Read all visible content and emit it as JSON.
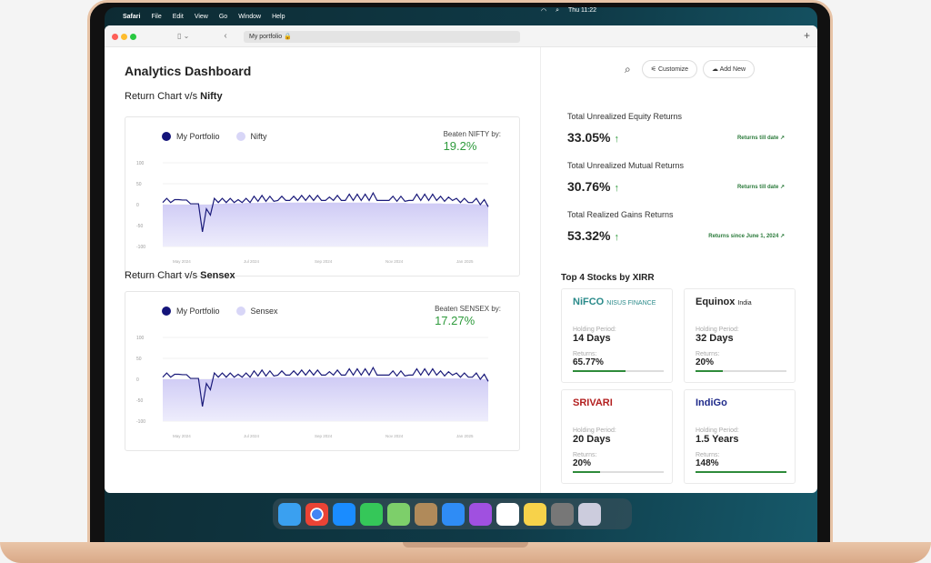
{
  "menubar": {
    "app": "Safari",
    "items": [
      "File",
      "Edit",
      "View",
      "Go",
      "Window",
      "Help"
    ],
    "clock": "Thu 11:22"
  },
  "browser": {
    "url": "My portfolio"
  },
  "page": {
    "title": "Analytics Dashboard"
  },
  "actions": {
    "customize": "Customize",
    "add_new": "Add New"
  },
  "charts": [
    {
      "title_prefix": "Return Chart v/s ",
      "title_bold": "Nifty",
      "legend": [
        "My Portfolio",
        "Nifty"
      ],
      "beaten_label": "Beaten NIFTY by:",
      "beaten_value": "19.2%"
    },
    {
      "title_prefix": "Return Chart v/s ",
      "title_bold": "Sensex",
      "legend": [
        "My Portfolio",
        "Sensex"
      ],
      "beaten_label": "Beaten SENSEX by:",
      "beaten_value": "17.27%"
    }
  ],
  "chart_data": [
    {
      "type": "line",
      "yticks": [
        "100",
        "50",
        "0",
        "-50",
        "-100"
      ],
      "ylim": [
        -100,
        100
      ],
      "xticks": [
        "May 2024",
        "Jul 2024",
        "Sep 2024",
        "Nov 2024",
        "Jan 2025"
      ],
      "series": [
        {
          "name": "My Portfolio",
          "color": "#1a1a7a",
          "values": [
            5,
            15,
            5,
            12,
            12,
            11,
            11,
            2,
            2,
            2,
            -65,
            -10,
            -25,
            15,
            5,
            15,
            5,
            15,
            5,
            12,
            5,
            15,
            5,
            20,
            8,
            22,
            8,
            20,
            8,
            10,
            20,
            10,
            10,
            20,
            10,
            22,
            10,
            22,
            10,
            22,
            10,
            10,
            18,
            10,
            22,
            10,
            10,
            25,
            10,
            25,
            10,
            25,
            10,
            28,
            10,
            10,
            10,
            10,
            20,
            8,
            20,
            8,
            10,
            10,
            25,
            10,
            25,
            10,
            25,
            10,
            20,
            8,
            18,
            10,
            15,
            5,
            15,
            5,
            5,
            15,
            0,
            12,
            -5
          ]
        },
        {
          "name": "Nifty",
          "color": "#d8d6f7",
          "values": [
            0,
            0,
            0,
            0,
            0,
            0,
            0,
            0,
            0,
            0,
            0,
            0,
            0,
            2,
            2,
            2,
            3,
            3,
            3,
            3,
            3,
            4,
            4,
            4,
            4,
            4,
            5,
            5,
            5,
            5,
            5,
            5,
            5,
            5,
            5,
            5,
            5,
            5,
            5,
            5,
            5,
            5,
            5,
            5,
            5,
            5,
            5,
            5,
            5,
            5,
            5,
            5,
            5,
            5,
            4,
            4,
            4,
            4,
            4,
            4,
            4,
            4,
            3,
            3,
            3,
            3,
            3,
            3,
            3,
            3,
            3,
            2,
            2,
            2,
            2,
            2,
            2,
            1,
            1,
            1,
            0,
            0,
            0
          ]
        }
      ]
    },
    {
      "type": "line",
      "yticks": [
        "100",
        "50",
        "0",
        "-50",
        "-100"
      ],
      "ylim": [
        -100,
        100
      ],
      "xticks": [
        "May 2024",
        "Jul 2024",
        "Sep 2024",
        "Nov 2024",
        "Jan 2025"
      ],
      "series": [
        {
          "name": "My Portfolio",
          "color": "#1a1a7a",
          "values": [
            5,
            15,
            5,
            12,
            12,
            11,
            11,
            2,
            2,
            2,
            -65,
            -10,
            -25,
            15,
            5,
            15,
            5,
            15,
            5,
            12,
            5,
            15,
            5,
            20,
            8,
            22,
            8,
            20,
            8,
            10,
            20,
            10,
            10,
            20,
            10,
            22,
            10,
            22,
            10,
            22,
            10,
            10,
            18,
            10,
            22,
            10,
            10,
            25,
            10,
            25,
            10,
            25,
            10,
            28,
            10,
            10,
            10,
            10,
            20,
            8,
            20,
            8,
            10,
            10,
            25,
            10,
            25,
            10,
            25,
            10,
            20,
            8,
            18,
            10,
            15,
            5,
            15,
            5,
            5,
            15,
            0,
            12,
            -5
          ]
        },
        {
          "name": "Sensex",
          "color": "#d8d6f7",
          "values": [
            0,
            0,
            0,
            0,
            0,
            0,
            0,
            0,
            0,
            0,
            0,
            0,
            0,
            2,
            2,
            2,
            3,
            3,
            3,
            3,
            3,
            4,
            4,
            4,
            4,
            4,
            5,
            5,
            5,
            5,
            5,
            5,
            5,
            5,
            5,
            5,
            5,
            5,
            5,
            5,
            5,
            5,
            5,
            5,
            5,
            5,
            5,
            5,
            5,
            5,
            5,
            5,
            5,
            5,
            4,
            4,
            4,
            4,
            4,
            4,
            4,
            4,
            3,
            3,
            3,
            3,
            3,
            3,
            3,
            3,
            3,
            2,
            2,
            2,
            2,
            2,
            2,
            1,
            1,
            1,
            0,
            0,
            0
          ]
        }
      ]
    }
  ],
  "stats": [
    {
      "label": "Total Unrealized Equity Returns",
      "value": "33.05%",
      "note": "Returns till date ↗"
    },
    {
      "label": "Total Unrealized Mutual Returns",
      "value": "30.76%",
      "note": "Returns till date ↗"
    },
    {
      "label": "Total Realized Gains Returns",
      "value": "53.32%",
      "note": "Returns since June 1, 2024 ↗"
    }
  ],
  "top_stocks": {
    "title": "Top 4 Stocks by XIRR",
    "holding_label": "Holding Period:",
    "returns_label": "Returns:",
    "items": [
      {
        "name": "NiFCO",
        "sub": "NISUS FINANCE",
        "holding": "14 Days",
        "returns": "65.77%",
        "progress": 0.58,
        "color": "#2a8a8a"
      },
      {
        "name": "Equinox",
        "sub": "India",
        "holding": "32 Days",
        "returns": "20%",
        "progress": 0.3,
        "color": "#222"
      },
      {
        "name": "SRIVARI",
        "sub": "",
        "holding": "20 Days",
        "returns": "20%",
        "progress": 0.3,
        "color": "#b32020"
      },
      {
        "name": "IndiGo",
        "sub": "",
        "holding": "1.5 Years",
        "returns": "148%",
        "progress": 1.0,
        "color": "#1f2a8a"
      }
    ]
  }
}
